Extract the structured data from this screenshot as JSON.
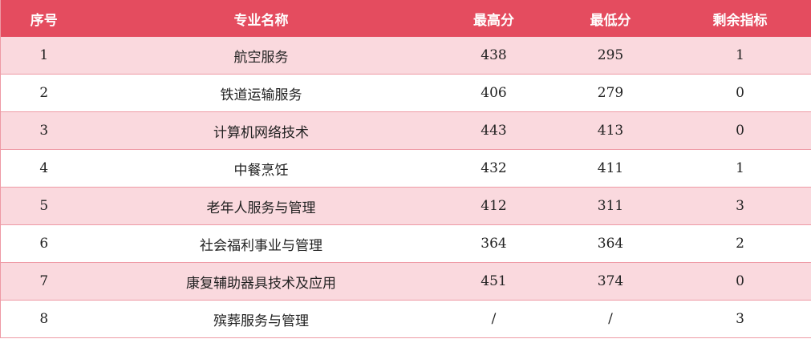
{
  "colors": {
    "header": "#e44c5f",
    "row_alt": "#fad9de",
    "border": "#ee9aa5"
  },
  "headers": [
    "序号",
    "专业名称",
    "最高分",
    "最低分",
    "剩余指标"
  ],
  "rows": [
    [
      "1",
      "航空服务",
      "438",
      "295",
      "1"
    ],
    [
      "2",
      "铁道运输服务",
      "406",
      "279",
      "0"
    ],
    [
      "3",
      "计算机网络技术",
      "443",
      "413",
      "0"
    ],
    [
      "4",
      "中餐烹饪",
      "432",
      "411",
      "1"
    ],
    [
      "5",
      "老年人服务与管理",
      "412",
      "311",
      "3"
    ],
    [
      "6",
      "社会福利事业与管理",
      "364",
      "364",
      "2"
    ],
    [
      "7",
      "康复辅助器具技术及应用",
      "451",
      "374",
      "0"
    ],
    [
      "8",
      "殡葬服务与管理",
      "/",
      "/",
      "3"
    ]
  ]
}
